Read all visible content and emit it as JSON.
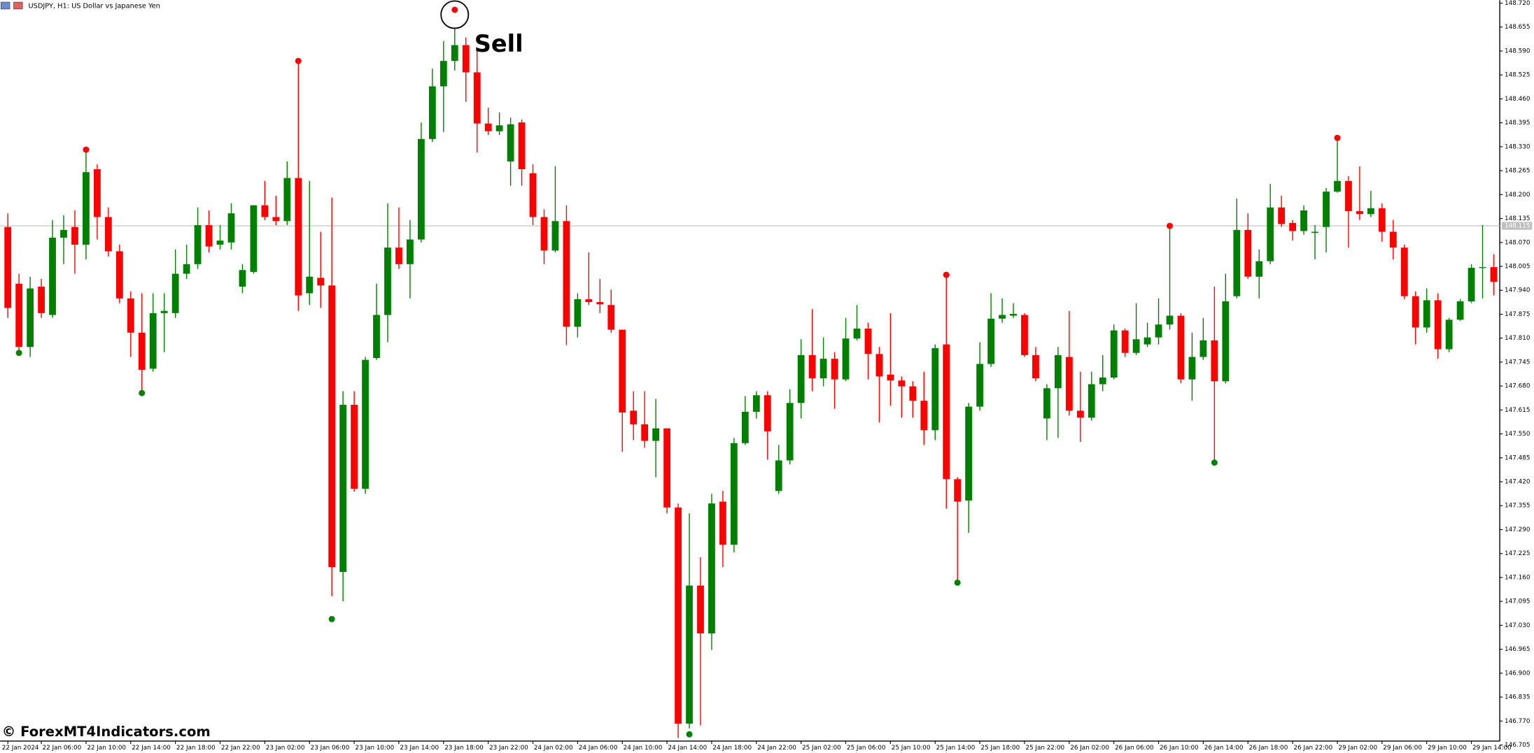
{
  "chart_data": {
    "type": "candlestick",
    "title": "USDJPY, H1:  US Dollar vs Japanese Yen",
    "watermark": "© ForexMT4Indicators.com",
    "annotation": "Sell",
    "up_color": "#008000",
    "down_color": "#ff0000",
    "categories": [
      "22 Jan 2024",
      null,
      null,
      "22 Jan 06:00",
      null,
      null,
      null,
      "22 Jan 10:00",
      null,
      null,
      null,
      "22 Jan 14:00",
      null,
      null,
      null,
      "22 Jan 18:00",
      null,
      null,
      null,
      "22 Jan 22:00",
      null,
      null,
      null,
      "23 Jan 02:00",
      null,
      null,
      null,
      "23 Jan 06:00",
      null,
      null,
      null,
      "23 Jan 10:00",
      null,
      null,
      null,
      "23 Jan 14:00",
      null,
      null,
      null,
      "23 Jan 18:00",
      null,
      null,
      null,
      "23 Jan 22:00",
      null,
      null,
      null,
      "24 Jan 02:00",
      null,
      null,
      null,
      "24 Jan 06:00",
      null,
      null,
      null,
      "24 Jan 10:00",
      null,
      null,
      null,
      "24 Jan 14:00",
      null,
      null,
      null,
      "24 Jan 18:00",
      null,
      null,
      null,
      "24 Jan 22:00",
      null,
      null,
      null,
      "25 Jan 02:00",
      null,
      null,
      null,
      "25 Jan 06:00",
      null,
      null,
      null,
      "25 Jan 10:00",
      null,
      null,
      null,
      "25 Jan 14:00",
      null,
      null,
      null,
      "25 Jan 18:00",
      null,
      null,
      null,
      "25 Jan 22:00",
      null,
      null,
      null,
      "26 Jan 02:00",
      null,
      null,
      null,
      "26 Jan 06:00",
      null,
      null,
      null,
      "26 Jan 10:00",
      null,
      null,
      null,
      "26 Jan 14:00",
      null,
      null,
      null,
      "26 Jan 18:00",
      null,
      null,
      null,
      "26 Jan 22:00",
      null,
      null,
      null,
      "29 Jan 02:00",
      null,
      null,
      null,
      "29 Jan 06:00",
      null,
      null,
      null,
      "29 Jan 10:00",
      null,
      null,
      null,
      "29 Jan 14:00",
      null,
      null
    ],
    "open": [
      148.112,
      147.958,
      147.786,
      147.95,
      147.873,
      148.083,
      148.112,
      148.064,
      148.269,
      148.139,
      148.046,
      147.918,
      147.825,
      147.727,
      147.878,
      147.878,
      147.985,
      148.011,
      148.117,
      148.064,
      148.07,
      147.95,
      147.99,
      148.171,
      148.139,
      148.128,
      148.245,
      147.932,
      147.974,
      147.953,
      147.175,
      147.629,
      147.401,
      147.756,
      147.873,
      148.056,
      148.011,
      148.078,
      148.351,
      148.494,
      148.563,
      148.606,
      148.532,
      148.393,
      148.372,
      148.29,
      148.396,
      148.258,
      148.139,
      148.048,
      148.128,
      147.841,
      147.916,
      147.908,
      147.9,
      147.833,
      147.613,
      147.576,
      147.531,
      147.565,
      147.35,
      146.763,
      147.138,
      147.008,
      147.366,
      147.249,
      147.525,
      147.61,
      147.655,
      147.395,
      147.478,
      147.634,
      147.764,
      147.701,
      147.754,
      147.698,
      147.809,
      147.836,
      147.767,
      147.711,
      147.695,
      147.679,
      147.64,
      147.56,
      147.793,
      147.427,
      147.369,
      147.624,
      147.74,
      147.863,
      147.871,
      147.873,
      147.764,
      147.592,
      147.674,
      147.759,
      147.613,
      147.594,
      147.685,
      147.703,
      147.831,
      147.77,
      147.793,
      147.812,
      147.847,
      147.871,
      147.698,
      147.759,
      147.804,
      147.693,
      147.924,
      148.104,
      147.977,
      148.019,
      148.165,
      148.123,
      148.101,
      148.096,
      148.112,
      148.208,
      148.237,
      148.155,
      148.147,
      148.163,
      148.099,
      148.056,
      147.924,
      147.839,
      147.913,
      147.78,
      147.86,
      147.91,
      148.001,
      148.003
    ],
    "high": [
      148.149,
      147.985,
      147.977,
      147.971,
      148.131,
      148.144,
      148.157,
      148.324,
      148.282,
      148.165,
      148.064,
      147.937,
      147.932,
      147.932,
      147.932,
      148.051,
      148.064,
      148.165,
      148.157,
      148.117,
      148.176,
      148.011,
      148.171,
      148.237,
      148.197,
      148.29,
      148.558,
      148.237,
      148.099,
      148.192,
      147.666,
      147.666,
      147.759,
      147.958,
      148.176,
      148.165,
      148.131,
      148.396,
      148.542,
      148.617,
      148.654,
      148.627,
      148.595,
      148.436,
      148.423,
      148.409,
      148.404,
      148.282,
      148.16,
      148.277,
      148.171,
      147.932,
      148.043,
      147.971,
      147.942,
      147.833,
      147.666,
      147.666,
      147.645,
      147.565,
      147.361,
      147.334,
      147.215,
      147.387,
      147.395,
      147.539,
      147.653,
      147.666,
      147.666,
      147.52,
      147.671,
      147.807,
      147.889,
      147.812,
      147.772,
      147.865,
      147.9,
      147.852,
      147.786,
      147.878,
      147.706,
      147.693,
      147.719,
      147.793,
      147.982,
      147.432,
      147.634,
      147.799,
      147.932,
      147.918,
      147.905,
      147.878,
      147.786,
      147.685,
      147.786,
      147.884,
      147.719,
      147.719,
      147.764,
      147.847,
      147.836,
      147.905,
      147.852,
      147.918,
      148.115,
      147.878,
      147.825,
      147.865,
      147.95,
      147.985,
      148.189,
      148.149,
      148.051,
      148.229,
      148.197,
      148.131,
      148.171,
      148.117,
      148.218,
      148.346,
      148.25,
      148.277,
      148.21,
      148.176,
      148.131,
      148.064,
      147.937,
      147.945,
      147.932,
      147.865,
      147.916,
      148.011,
      148.117,
      148.038
    ],
    "low": [
      147.865,
      147.772,
      147.759,
      147.865,
      147.865,
      148.011,
      147.985,
      148.024,
      148.078,
      148.032,
      147.905,
      147.759,
      147.666,
      147.719,
      147.772,
      147.865,
      147.971,
      147.998,
      148.043,
      148.051,
      148.051,
      147.932,
      147.985,
      148.131,
      148.117,
      148.117,
      147.884,
      147.9,
      147.892,
      147.109,
      147.095,
      147.393,
      147.387,
      147.751,
      147.799,
      147.998,
      147.918,
      148.07,
      148.343,
      148.37,
      148.537,
      148.452,
      148.314,
      148.362,
      148.362,
      148.224,
      148.224,
      148.117,
      148.011,
      148.043,
      147.791,
      147.812,
      147.9,
      147.878,
      147.825,
      147.501,
      147.533,
      147.512,
      147.432,
      147.334,
      146.724,
      146.75,
      146.758,
      146.963,
      147.188,
      147.228,
      147.52,
      147.592,
      147.48,
      147.387,
      147.467,
      147.592,
      147.666,
      147.679,
      147.618,
      147.693,
      147.804,
      147.698,
      147.581,
      147.626,
      147.594,
      147.594,
      147.52,
      147.533,
      147.347,
      147.154,
      147.281,
      147.613,
      147.732,
      147.852,
      147.865,
      147.759,
      147.693,
      147.533,
      147.539,
      147.6,
      147.528,
      147.586,
      147.666,
      147.698,
      147.759,
      147.764,
      147.786,
      147.793,
      147.833,
      147.687,
      147.64,
      147.751,
      147.48,
      147.687,
      147.918,
      147.971,
      147.918,
      148.011,
      148.112,
      148.075,
      148.091,
      148.024,
      148.043,
      148.205,
      148.056,
      148.131,
      148.139,
      148.072,
      148.024,
      147.916,
      147.793,
      147.825,
      147.754,
      147.772,
      147.857,
      147.905,
      147.918,
      147.926
    ],
    "close": [
      147.892,
      147.786,
      147.945,
      147.878,
      148.083,
      148.104,
      148.064,
      148.261,
      148.139,
      148.046,
      147.918,
      147.825,
      147.724,
      147.878,
      147.884,
      147.985,
      148.011,
      148.117,
      148.059,
      148.075,
      148.149,
      147.995,
      148.171,
      148.139,
      148.128,
      148.245,
      147.926,
      147.977,
      147.953,
      147.188,
      147.629,
      147.401,
      147.751,
      147.873,
      148.056,
      148.011,
      148.078,
      148.351,
      148.494,
      148.563,
      148.606,
      148.532,
      148.393,
      148.372,
      148.388,
      148.391,
      148.269,
      148.139,
      148.048,
      148.128,
      147.841,
      147.916,
      147.908,
      147.902,
      147.833,
      147.608,
      147.576,
      147.531,
      147.565,
      147.35,
      146.763,
      147.138,
      147.008,
      147.361,
      147.249,
      147.525,
      147.61,
      147.655,
      147.557,
      147.478,
      147.634,
      147.764,
      147.701,
      147.754,
      147.698,
      147.809,
      147.836,
      147.767,
      147.706,
      147.695,
      147.679,
      147.64,
      147.56,
      147.783,
      147.427,
      147.366,
      147.624,
      147.74,
      147.863,
      147.873,
      147.876,
      147.764,
      147.701,
      147.674,
      147.764,
      147.613,
      147.594,
      147.685,
      147.703,
      147.831,
      147.77,
      147.807,
      147.812,
      147.847,
      147.871,
      147.698,
      147.759,
      147.804,
      147.693,
      147.91,
      148.104,
      147.977,
      148.019,
      148.165,
      148.12,
      148.101,
      148.157,
      148.099,
      148.208,
      148.237,
      148.155,
      148.147,
      148.163,
      148.099,
      148.056,
      147.924,
      147.839,
      147.913,
      147.78,
      147.86,
      147.91,
      148.001,
      148.003,
      147.963
    ],
    "overlays": [
      {
        "color": "#ff0000",
        "values": [
          null,
          null,
          null,
          null,
          null,
          null,
          null,
          148.322,
          null,
          null,
          null,
          null,
          null,
          null,
          null,
          null,
          null,
          null,
          null,
          null,
          null,
          null,
          null,
          null,
          null,
          null,
          148.563,
          null,
          null,
          null,
          null,
          null,
          null,
          null,
          null,
          null,
          null,
          null,
          null,
          null,
          148.702,
          null,
          null,
          null,
          null,
          null,
          null,
          null,
          null,
          null,
          null,
          null,
          null,
          null,
          null,
          null,
          null,
          null,
          null,
          null,
          null,
          null,
          null,
          null,
          null,
          null,
          null,
          null,
          null,
          null,
          null,
          null,
          null,
          null,
          null,
          null,
          null,
          null,
          null,
          null,
          null,
          null,
          null,
          null,
          147.982,
          null,
          null,
          null,
          null,
          null,
          null,
          null,
          null,
          null,
          null,
          null,
          null,
          null,
          null,
          null,
          null,
          null,
          null,
          null,
          148.115,
          null,
          null,
          null,
          null,
          null,
          null,
          null,
          null,
          null,
          null,
          null,
          null,
          null,
          null,
          148.354,
          null,
          null,
          null,
          null,
          null,
          null,
          null,
          null,
          null,
          null,
          null,
          null,
          null,
          null
        ]
      },
      {
        "color": "#008000",
        "values": [
          null,
          147.77,
          null,
          null,
          null,
          null,
          null,
          null,
          null,
          null,
          null,
          null,
          147.661,
          null,
          null,
          null,
          null,
          null,
          null,
          null,
          null,
          null,
          null,
          null,
          null,
          null,
          null,
          null,
          null,
          147.047,
          null,
          null,
          null,
          null,
          null,
          null,
          null,
          null,
          null,
          null,
          null,
          null,
          null,
          null,
          null,
          null,
          null,
          null,
          null,
          null,
          null,
          null,
          null,
          null,
          null,
          null,
          null,
          null,
          null,
          null,
          null,
          146.734,
          null,
          null,
          null,
          null,
          null,
          null,
          null,
          null,
          null,
          null,
          null,
          null,
          null,
          null,
          null,
          null,
          null,
          null,
          null,
          null,
          null,
          null,
          null,
          147.146,
          null,
          null,
          null,
          null,
          null,
          null,
          null,
          null,
          null,
          null,
          null,
          null,
          null,
          null,
          null,
          null,
          null,
          null,
          null,
          null,
          null,
          null,
          147.472,
          null,
          null,
          null,
          null,
          null,
          null,
          null,
          null,
          null,
          null,
          null,
          null,
          null,
          null,
          null,
          null,
          null,
          null,
          null,
          null,
          null,
          null,
          null,
          null,
          null
        ]
      }
    ],
    "price_line": {
      "value": 148.115,
      "color": "#c0c0c0"
    },
    "ylim": [
      146.697,
      148.728
    ],
    "yticks": [
      {
        "value": 148.72,
        "label": "148.720"
      },
      148.655,
      {
        "value": 148.59,
        "label": "148.590"
      },
      148.525,
      {
        "value": 148.46,
        "label": "148.460"
      },
      148.395,
      {
        "value": 148.33,
        "label": "148.330"
      },
      148.265,
      {
        "value": 148.2,
        "label": "148.200"
      },
      148.135,
      {
        "value": 148.07,
        "label": "148.070"
      },
      148.005,
      {
        "value": 147.94,
        "label": "147.940"
      },
      147.875,
      {
        "value": 147.81,
        "label": "147.810"
      },
      147.745,
      {
        "value": 147.68,
        "label": "147.680"
      },
      147.615,
      {
        "value": 147.55,
        "label": "147.550"
      },
      147.485,
      {
        "value": 147.42,
        "label": "147.420"
      },
      147.355,
      {
        "value": 147.29,
        "label": "147.290"
      },
      147.225,
      {
        "value": 147.16,
        "label": "147.160"
      },
      147.095,
      {
        "value": 147.03,
        "label": "147.030"
      },
      146.965,
      {
        "value": 146.9,
        "label": "146.900"
      },
      146.835,
      {
        "value": 146.77,
        "label": "146.770"
      },
      146.705
    ]
  }
}
